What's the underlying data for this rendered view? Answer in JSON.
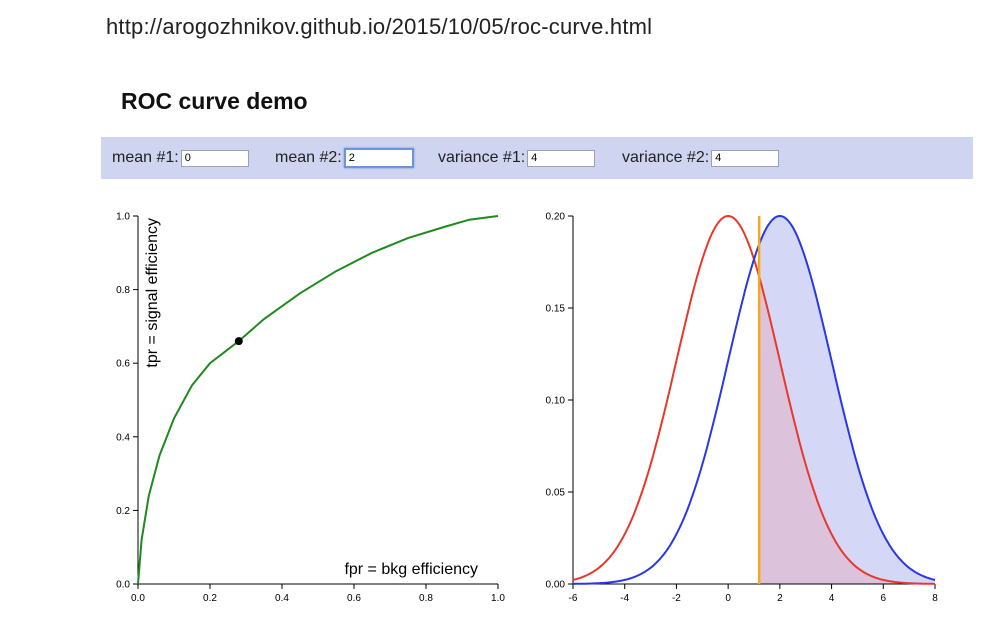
{
  "browser": {
    "url": "http://arogozhnikov.github.io/2015/10/05/roc-curve.html"
  },
  "page": {
    "title": "ROC curve demo"
  },
  "controls": {
    "mean1": {
      "label": "mean #1:",
      "value": "0"
    },
    "mean2": {
      "label": "mean #2:",
      "value": "2"
    },
    "variance1": {
      "label": "variance #1:",
      "value": "4"
    },
    "variance2": {
      "label": "variance #2:",
      "value": "4"
    }
  },
  "colors": {
    "roc_curve": "#1f8a1f",
    "dist1": "#e8382c",
    "dist2": "#2838e8",
    "threshold": "#f5a623",
    "fill2": "#d4d8f6",
    "fill_overlap": "#ddc2dc"
  },
  "chart_data": [
    {
      "type": "line",
      "xlabel": "fpr = bkg efficiency",
      "ylabel": "tpr = signal efficiency",
      "xlim": [
        0,
        1
      ],
      "ylim": [
        0,
        1
      ],
      "xticks": [
        "0.0",
        "0.2",
        "0.4",
        "0.6",
        "0.8",
        "1.0"
      ],
      "yticks": [
        "0.0",
        "0.2",
        "0.4",
        "0.6",
        "0.8",
        "1.0"
      ],
      "x": [
        0.0,
        0.01,
        0.03,
        0.06,
        0.1,
        0.15,
        0.2,
        0.28,
        0.35,
        0.45,
        0.55,
        0.65,
        0.75,
        0.85,
        0.92,
        1.0
      ],
      "y": [
        0.0,
        0.12,
        0.24,
        0.35,
        0.45,
        0.54,
        0.6,
        0.66,
        0.72,
        0.79,
        0.85,
        0.9,
        0.94,
        0.97,
        0.99,
        1.0
      ],
      "marker": {
        "x": 0.28,
        "y": 0.66
      }
    },
    {
      "type": "line",
      "xlim": [
        -6,
        8
      ],
      "ylim": [
        0,
        0.2
      ],
      "xticks": [
        "-6",
        "-4",
        "-2",
        "0",
        "2",
        "4",
        "6",
        "8"
      ],
      "yticks": [
        "0.00",
        "0.05",
        "0.10",
        "0.15",
        "0.20"
      ],
      "threshold": 1.2,
      "series": [
        {
          "mean": 0,
          "sd": 2
        },
        {
          "mean": 2,
          "sd": 2
        }
      ]
    }
  ]
}
